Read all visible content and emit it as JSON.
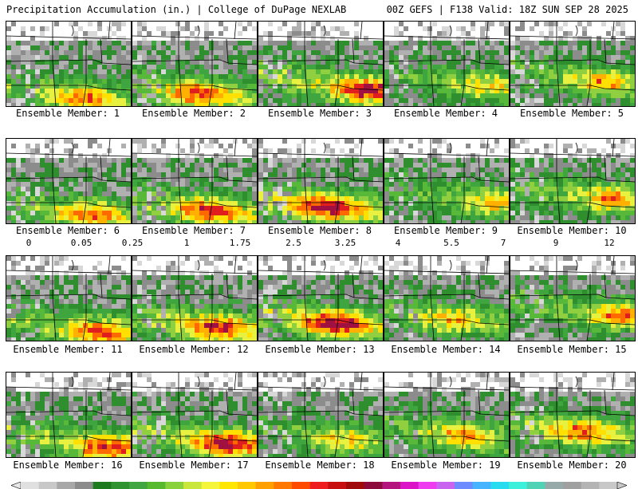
{
  "header": {
    "title": "Precipitation Accumulation (in.) | College of DuPage NEXLAB",
    "valid": "00Z GEFS | F138 Valid: 18Z SUN SEP 28 2025"
  },
  "colorbar": {
    "labels": [
      "0",
      "0.05",
      "0.25",
      "1",
      "1.75",
      "2.5",
      "3.25",
      "4",
      "5.5",
      "7",
      "9",
      "12"
    ],
    "colors": [
      "#e0e0e0",
      "#c8c8c8",
      "#a8a8a8",
      "#8c8c8c",
      "#1e7a1e",
      "#2f932f",
      "#41a641",
      "#56b92e",
      "#8ad23c",
      "#c8e63c",
      "#f5f53c",
      "#ffe600",
      "#ffc800",
      "#ffa000",
      "#ff7800",
      "#ff4b00",
      "#ee1e1e",
      "#c80f0f",
      "#a00a0a",
      "#8c0a3c",
      "#b4147d",
      "#dc14c8",
      "#f03cf0",
      "#c864f0",
      "#6e8cff",
      "#46b4ff",
      "#28dcf0",
      "#3cf0dc",
      "#50d2b4",
      "#96aaaa",
      "#a0a0a0",
      "#b4b4b4",
      "#c8c8c8"
    ]
  },
  "members": [
    {
      "label": "Ensemble Member: 1"
    },
    {
      "label": "Ensemble Member: 2"
    },
    {
      "label": "Ensemble Member: 3"
    },
    {
      "label": "Ensemble Member: 4"
    },
    {
      "label": "Ensemble Member: 5"
    },
    {
      "label": "Ensemble Member: 6"
    },
    {
      "label": "Ensemble Member: 7"
    },
    {
      "label": "Ensemble Member: 8"
    },
    {
      "label": "Ensemble Member: 9"
    },
    {
      "label": "Ensemble Member: 10"
    },
    {
      "label": "Ensemble Member: 11"
    },
    {
      "label": "Ensemble Member: 12"
    },
    {
      "label": "Ensemble Member: 13"
    },
    {
      "label": "Ensemble Member: 14"
    },
    {
      "label": "Ensemble Member: 15"
    },
    {
      "label": "Ensemble Member: 16"
    },
    {
      "label": "Ensemble Member: 17"
    },
    {
      "label": "Ensemble Member: 18"
    },
    {
      "label": "Ensemble Member: 19"
    },
    {
      "label": "Ensemble Member: 20"
    }
  ]
}
